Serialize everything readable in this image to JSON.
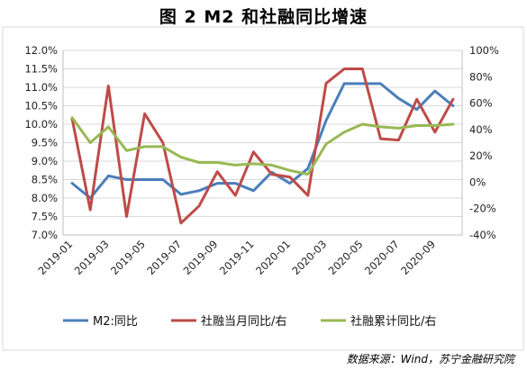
{
  "title": "图 2  M2 和社融同比增速",
  "source": "数据来源：Wind，苏宁金融研究院",
  "chart_data": {
    "type": "line",
    "x": [
      "2019-01",
      "2019-02",
      "2019-03",
      "2019-04",
      "2019-05",
      "2019-06",
      "2019-07",
      "2019-08",
      "2019-09",
      "2019-10",
      "2019-11",
      "2019-12",
      "2020-01",
      "2020-02",
      "2020-03",
      "2020-04",
      "2020-05",
      "2020-06",
      "2020-07",
      "2020-08",
      "2020-09",
      "2020-10"
    ],
    "x_tick_labels": [
      "2019-01",
      "2019-03",
      "2019-05",
      "2019-07",
      "2019-09",
      "2019-11",
      "2020-01",
      "2020-03",
      "2020-05",
      "2020-07",
      "2020-09"
    ],
    "y_left": {
      "min": 7.0,
      "max": 12.0,
      "step": 0.5,
      "ticks": [
        "7.0%",
        "7.5%",
        "8.0%",
        "8.5%",
        "9.0%",
        "9.5%",
        "10.0%",
        "10.5%",
        "11.0%",
        "11.5%",
        "12.0%"
      ]
    },
    "y_right": {
      "min": -40,
      "max": 100,
      "step": 20,
      "ticks": [
        "-40%",
        "-20%",
        "0%",
        "20%",
        "40%",
        "60%",
        "80%",
        "100%"
      ]
    },
    "grid": "horizontal",
    "legend_position": "bottom",
    "series": [
      {
        "name": "M2:同比",
        "axis": "left",
        "color": "#4a7ebb",
        "values": [
          8.4,
          8.0,
          8.6,
          8.5,
          8.5,
          8.5,
          8.1,
          8.2,
          8.4,
          8.4,
          8.2,
          8.7,
          8.4,
          8.8,
          10.1,
          11.1,
          11.1,
          11.1,
          10.7,
          10.4,
          10.9,
          10.5
        ]
      },
      {
        "name": "社融当月同比/右",
        "axis": "right",
        "color": "#be4b48",
        "values": [
          48,
          -21,
          73,
          -26,
          52,
          30,
          -31,
          -18,
          8,
          -10,
          23,
          6,
          4,
          -10,
          75,
          86,
          86,
          33,
          32,
          63,
          38,
          63
        ]
      },
      {
        "name": "社融累计同比/右",
        "axis": "right",
        "color": "#98b954",
        "values": [
          49,
          30,
          42,
          24,
          27,
          27,
          19,
          15,
          15,
          13,
          14,
          13,
          9,
          6,
          29,
          38,
          44,
          42,
          41,
          43,
          43,
          44
        ]
      }
    ]
  }
}
